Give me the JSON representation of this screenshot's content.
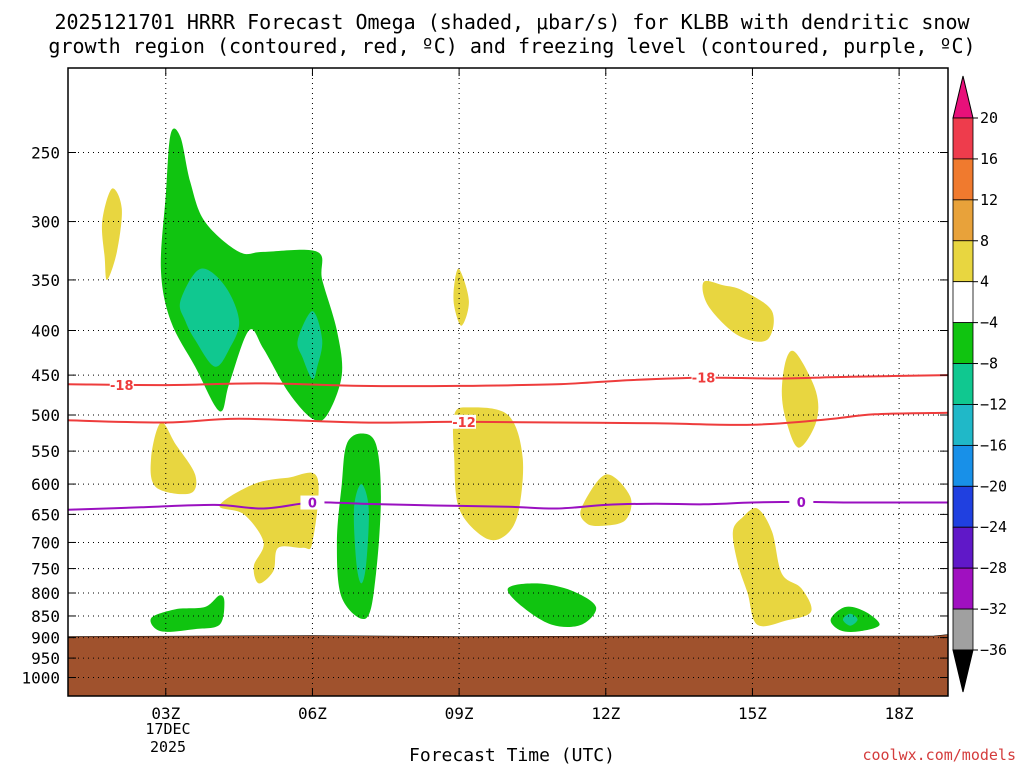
{
  "chart_data": {
    "type": "heatmap",
    "title_line1": "2025121701 HRRR Forecast Omega (shaded, μbar/s) for KLBB with dendritic snow",
    "title_line2": "growth region (contoured, red, ºC) and freezing level (contoured, purple, ºC)",
    "xlabel": "Forecast Time (UTC)",
    "x_ticks": [
      "03Z",
      "06Z",
      "09Z",
      "12Z",
      "15Z",
      "18Z"
    ],
    "x_tick_hours": [
      3,
      6,
      9,
      12,
      15,
      18
    ],
    "x_date_label": [
      "17DEC",
      "2025"
    ],
    "x_range_hours": [
      1,
      19
    ],
    "y_ticks": [
      250,
      300,
      350,
      400,
      450,
      500,
      550,
      600,
      650,
      700,
      750,
      800,
      850,
      900,
      950,
      1000
    ],
    "y_range_hpa": [
      200,
      1050
    ],
    "ground_level_hpa": 895,
    "grid": true,
    "colorbar": {
      "labels": [
        "20",
        "16",
        "12",
        "8",
        "4",
        "−4",
        "−8",
        "−12",
        "−16",
        "−20",
        "−24",
        "−28",
        "−32",
        "−36"
      ],
      "colors": [
        "#ee3c4c",
        "#f07a2e",
        "#e8a23a",
        "#e8d640",
        "#ffffff",
        "#10c410",
        "#10c890",
        "#20b8c8",
        "#1890e8",
        "#2040e0",
        "#6018c8",
        "#a010c0",
        "#a0a0a0"
      ],
      "over_color": "#e8107a",
      "under_color": "#000000"
    },
    "contours": [
      {
        "color": "#ee3c3c",
        "label": "-18",
        "points": [
          [
            1.0,
            461
          ],
          [
            3.0,
            462
          ],
          [
            5.0,
            460
          ],
          [
            7.0,
            463
          ],
          [
            9.0,
            463
          ],
          [
            11.0,
            461
          ],
          [
            12.5,
            456
          ],
          [
            14.0,
            453
          ],
          [
            15.5,
            454
          ],
          [
            17.0,
            452
          ],
          [
            19.0,
            450
          ]
        ]
      },
      {
        "color": "#ee3c3c",
        "label": "-12",
        "points": [
          [
            1.0,
            507
          ],
          [
            3.0,
            510
          ],
          [
            4.5,
            505
          ],
          [
            7.0,
            510
          ],
          [
            9.0,
            509
          ],
          [
            11.0,
            510
          ],
          [
            13.0,
            511
          ],
          [
            15.0,
            513
          ],
          [
            16.5,
            506
          ],
          [
            17.5,
            499
          ],
          [
            19.0,
            497
          ]
        ]
      },
      {
        "color": "#9a10c0",
        "label": "0",
        "points": [
          [
            1.0,
            642
          ],
          [
            2.5,
            638
          ],
          [
            4.0,
            634
          ],
          [
            5.0,
            640
          ],
          [
            6.0,
            630
          ],
          [
            7.0,
            632
          ],
          [
            8.5,
            635
          ],
          [
            10.0,
            637
          ],
          [
            11.0,
            640
          ],
          [
            12.0,
            634
          ],
          [
            13.0,
            632
          ],
          [
            14.0,
            633
          ],
          [
            15.0,
            630
          ],
          [
            16.0,
            629
          ],
          [
            17.0,
            630
          ],
          [
            19.0,
            630
          ]
        ]
      }
    ],
    "contour_labels": [
      {
        "text": "-18",
        "x": 2.1,
        "y": 462,
        "color": "#ee3c3c"
      },
      {
        "text": "-12",
        "x": 9.1,
        "y": 509,
        "color": "#ee3c3c"
      },
      {
        "text": "-18",
        "x": 14.0,
        "y": 453,
        "color": "#ee3c3c"
      },
      {
        "text": "0",
        "x": 6.0,
        "y": 630,
        "color": "#9a10c0"
      },
      {
        "text": "0",
        "x": 16.0,
        "y": 629,
        "color": "#9a10c0"
      }
    ],
    "regions": [
      {
        "color": "#10c410",
        "points": [
          [
            2.9,
            340
          ],
          [
            3.0,
            280
          ],
          [
            3.1,
            238
          ],
          [
            3.3,
            240
          ],
          [
            3.5,
            270
          ],
          [
            3.8,
            300
          ],
          [
            4.5,
            325
          ],
          [
            5.0,
            325
          ],
          [
            6.1,
            325
          ],
          [
            6.2,
            350
          ],
          [
            6.5,
            400
          ],
          [
            6.6,
            450
          ],
          [
            6.3,
            500
          ],
          [
            6.0,
            505
          ],
          [
            5.5,
            470
          ],
          [
            5.0,
            420
          ],
          [
            4.7,
            400
          ],
          [
            4.3,
            460
          ],
          [
            4.1,
            495
          ],
          [
            3.6,
            440
          ],
          [
            3.1,
            390
          ]
        ]
      },
      {
        "color": "#10c890",
        "points": [
          [
            3.3,
            370
          ],
          [
            3.7,
            340
          ],
          [
            4.2,
            355
          ],
          [
            4.5,
            390
          ],
          [
            4.3,
            420
          ],
          [
            4.0,
            440
          ],
          [
            3.6,
            410
          ],
          [
            3.4,
            390
          ]
        ]
      },
      {
        "color": "#10c890",
        "points": [
          [
            5.7,
            410
          ],
          [
            6.0,
            380
          ],
          [
            6.2,
            410
          ],
          [
            6.1,
            440
          ],
          [
            6.0,
            455
          ],
          [
            5.8,
            430
          ]
        ]
      },
      {
        "color": "#10c410",
        "points": [
          [
            6.6,
            600
          ],
          [
            6.7,
            540
          ],
          [
            7.0,
            525
          ],
          [
            7.3,
            540
          ],
          [
            7.4,
            620
          ],
          [
            7.3,
            760
          ],
          [
            7.1,
            855
          ],
          [
            6.6,
            810
          ],
          [
            6.5,
            700
          ]
        ]
      },
      {
        "color": "#10c890",
        "points": [
          [
            6.85,
            640
          ],
          [
            7.0,
            600
          ],
          [
            7.15,
            640
          ],
          [
            7.1,
            740
          ],
          [
            7.0,
            780
          ],
          [
            6.9,
            740
          ]
        ]
      },
      {
        "color": "#10c410",
        "points": [
          [
            2.7,
            855
          ],
          [
            3.2,
            835
          ],
          [
            3.8,
            830
          ],
          [
            4.1,
            805
          ],
          [
            4.2,
            820
          ],
          [
            4.1,
            870
          ],
          [
            3.6,
            880
          ],
          [
            2.9,
            885
          ]
        ]
      },
      {
        "color": "#10c410",
        "points": [
          [
            10.0,
            790
          ],
          [
            10.6,
            780
          ],
          [
            11.3,
            795
          ],
          [
            11.8,
            830
          ],
          [
            11.5,
            870
          ],
          [
            10.9,
            870
          ],
          [
            10.3,
            830
          ]
        ]
      },
      {
        "color": "#10c410",
        "points": [
          [
            16.6,
            858
          ],
          [
            16.9,
            830
          ],
          [
            17.3,
            840
          ],
          [
            17.6,
            870
          ],
          [
            17.2,
            885
          ],
          [
            16.8,
            883
          ]
        ]
      },
      {
        "color": "#10c890",
        "points": [
          [
            16.85,
            858
          ],
          [
            17.0,
            845
          ],
          [
            17.15,
            858
          ],
          [
            17.0,
            872
          ]
        ]
      },
      {
        "color": "#e8d640",
        "points": [
          [
            1.7,
            300
          ],
          [
            1.9,
            275
          ],
          [
            2.1,
            290
          ],
          [
            2.0,
            325
          ],
          [
            1.8,
            350
          ],
          [
            1.75,
            330
          ]
        ]
      },
      {
        "color": "#e8d640",
        "points": [
          [
            2.7,
            560
          ],
          [
            2.9,
            510
          ],
          [
            3.2,
            540
          ],
          [
            3.6,
            585
          ],
          [
            3.5,
            615
          ],
          [
            2.8,
            605
          ]
        ]
      },
      {
        "color": "#e8d640",
        "points": [
          [
            4.1,
            635
          ],
          [
            4.8,
            600
          ],
          [
            5.5,
            590
          ],
          [
            6.1,
            590
          ],
          [
            6.0,
            700
          ],
          [
            5.8,
            710
          ],
          [
            5.3,
            710
          ],
          [
            5.2,
            755
          ],
          [
            4.9,
            780
          ],
          [
            4.8,
            745
          ],
          [
            5.0,
            700
          ],
          [
            4.6,
            650
          ]
        ]
      },
      {
        "color": "#e8d640",
        "points": [
          [
            8.9,
            355
          ],
          [
            9.0,
            340
          ],
          [
            9.2,
            370
          ],
          [
            9.05,
            395
          ],
          [
            8.9,
            375
          ]
        ]
      },
      {
        "color": "#e8d640",
        "points": [
          [
            8.9,
            500
          ],
          [
            9.2,
            490
          ],
          [
            10.0,
            500
          ],
          [
            10.3,
            560
          ],
          [
            10.2,
            650
          ],
          [
            9.9,
            690
          ],
          [
            9.5,
            690
          ],
          [
            9.0,
            640
          ],
          [
            8.9,
            560
          ]
        ]
      },
      {
        "color": "#e8d640",
        "points": [
          [
            11.5,
            640
          ],
          [
            12.0,
            585
          ],
          [
            12.5,
            620
          ],
          [
            12.4,
            660
          ],
          [
            11.9,
            670
          ],
          [
            11.6,
            665
          ]
        ]
      },
      {
        "color": "#e8d640",
        "points": [
          [
            14.0,
            352
          ],
          [
            14.4,
            355
          ],
          [
            14.8,
            360
          ],
          [
            15.4,
            380
          ],
          [
            15.3,
            410
          ],
          [
            14.7,
            405
          ],
          [
            14.1,
            375
          ]
        ]
      },
      {
        "color": "#e8d640",
        "points": [
          [
            15.6,
            470
          ],
          [
            15.7,
            430
          ],
          [
            15.9,
            425
          ],
          [
            16.3,
            470
          ],
          [
            16.3,
            510
          ],
          [
            15.95,
            545
          ],
          [
            15.7,
            510
          ]
        ]
      },
      {
        "color": "#e8d640",
        "points": [
          [
            14.6,
            680
          ],
          [
            14.8,
            655
          ],
          [
            15.1,
            640
          ],
          [
            15.4,
            680
          ],
          [
            15.6,
            760
          ],
          [
            16.0,
            790
          ],
          [
            16.2,
            840
          ],
          [
            15.7,
            860
          ],
          [
            15.1,
            870
          ],
          [
            14.9,
            800
          ],
          [
            14.7,
            740
          ]
        ]
      }
    ]
  },
  "credit": "coolwx.com/models"
}
